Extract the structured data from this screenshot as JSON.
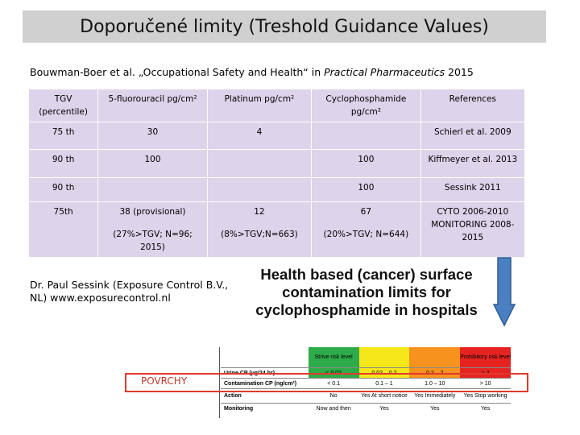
{
  "slide_title": "Doporučené limity (Treshold Guidance Values)",
  "citation": {
    "prefix": "Bouwman-Boer et al. „Occupational Safety and Health“ in ",
    "journal": "Practical Pharmaceutics",
    "year": " 2015"
  },
  "tgv_table": {
    "headers": [
      "TGV (percentile)",
      "5-fluorouracil pg/cm²",
      "Platinum pg/cm²",
      "Cyclophosphamide pg/cm²",
      "References"
    ],
    "rows": [
      [
        "75 th",
        "30",
        "4",
        "",
        "Schierl et al. 2009"
      ],
      [
        "90 th",
        "100",
        "",
        "100",
        "Kiffmeyer et al. 2013"
      ],
      [
        "90 th",
        "",
        "",
        "100",
        "Sessink 2011"
      ],
      [
        "75th",
        "38 (provisional)",
        "12",
        "67",
        "CYTO 2006-2010 MONITORING 2008-2015"
      ],
      [
        "",
        "(27%>TGV; N=96; 2015)",
        "(8%>TGV;N=663)",
        "(20%>TGV; N=644)",
        ""
      ]
    ]
  },
  "author_credit": "Dr. Paul Sessink (Exposure Control B.V., NL) www.exposurecontrol.nl",
  "health_title": "Health based (cancer) surface contamination limits for cyclophosphamide in hospitals",
  "limits_table": {
    "header": [
      "",
      "Strive risk level",
      "",
      "",
      "Prohibitory risk level"
    ],
    "rows": [
      [
        "Urine CP (µg/24 hr)",
        "< 0.02",
        "0.02 – 0.2",
        "0.2 – 2",
        "> 2"
      ],
      [
        "Contamination CP (ng/cm²)",
        "< 0.1",
        "0.1 – 1",
        "1.0 – 10",
        "> 10"
      ],
      [
        "Action",
        "No",
        "Yes At short notice",
        "Yes Immediately",
        "Yes Stop working"
      ],
      [
        "Monitoring",
        "Now and then",
        "Yes",
        "Yes",
        "Yes"
      ]
    ],
    "colors": {
      "strive": "#2eab4a",
      "low": "#f6e71b",
      "high": "#f7921e",
      "prohibitory": "#e52421"
    }
  },
  "highlight_label": "POVRCHY",
  "arrow_color": "#4a7fc1"
}
